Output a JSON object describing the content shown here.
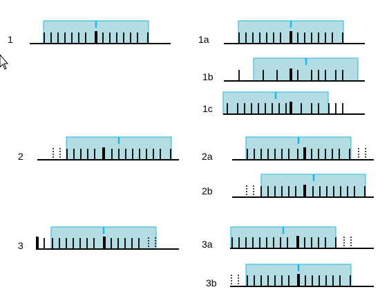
{
  "diagram": {
    "colors": {
      "window_fill": "#b4dde3",
      "window_stroke": "#1fb6e6",
      "center_mark": "#1fb6e6",
      "ink": "#000000"
    },
    "cursor_icon": "arrow-pointer-icon",
    "panels": [
      {
        "id": "1",
        "label": "1"
      },
      {
        "id": "1a",
        "label": "1a"
      },
      {
        "id": "1b",
        "label": "1b"
      },
      {
        "id": "1c",
        "label": "1c"
      },
      {
        "id": "2",
        "label": "2"
      },
      {
        "id": "2a",
        "label": "2a"
      },
      {
        "id": "2b",
        "label": "2b"
      },
      {
        "id": "3",
        "label": "3"
      },
      {
        "id": "3a",
        "label": "3a"
      },
      {
        "id": "3b",
        "label": "3b"
      }
    ]
  }
}
